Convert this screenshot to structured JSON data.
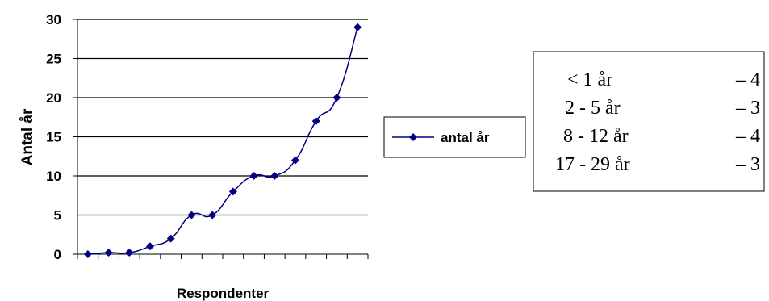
{
  "chart_data": {
    "type": "line",
    "xlabel": "Respondenter",
    "ylabel": "Antal år",
    "ylim": [
      0,
      30
    ],
    "yticks": [
      0,
      5,
      10,
      15,
      20,
      25,
      30
    ],
    "grid": true,
    "legend_placement": "right",
    "series": [
      {
        "name": "antal år",
        "color": "#000080",
        "marker": "diamond",
        "values": [
          0,
          0.2,
          0.2,
          1,
          2,
          5,
          5,
          8,
          10,
          10,
          12,
          17,
          20,
          29
        ]
      }
    ]
  },
  "summary_box": {
    "rows": [
      {
        "label": "< 1 år",
        "value": "– 4"
      },
      {
        "label": "2 - 5 år",
        "value": "– 3"
      },
      {
        "label": "8 - 12 år",
        "value": "– 4"
      },
      {
        "label": "17 - 29 år",
        "value": "– 3"
      }
    ]
  }
}
